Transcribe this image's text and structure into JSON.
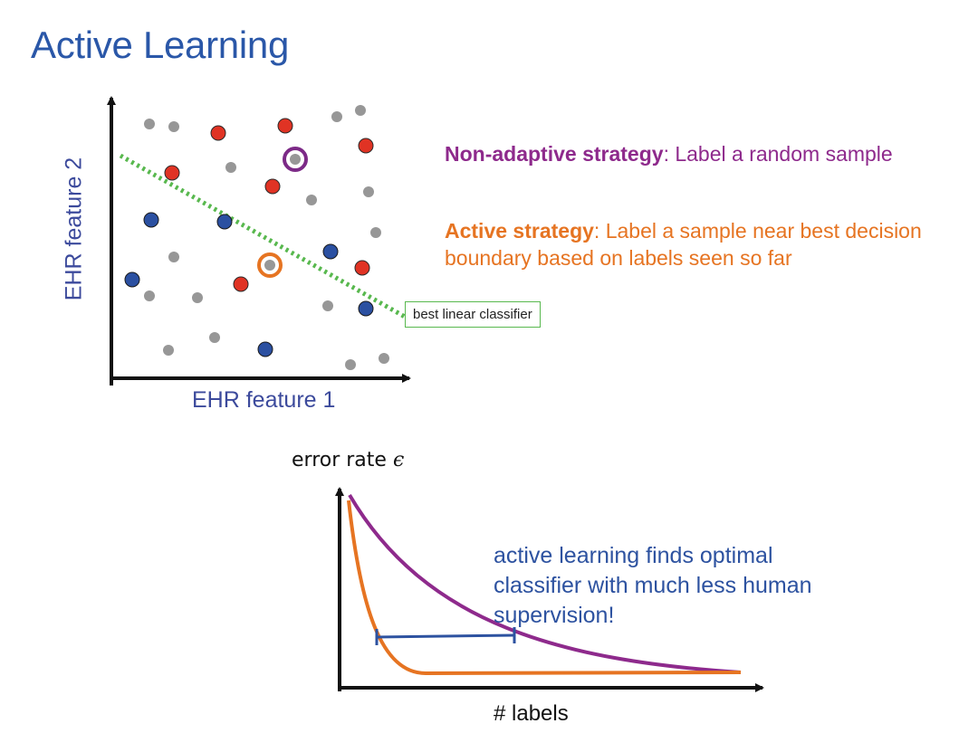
{
  "title": "Active Learning",
  "scatter": {
    "x_axis_label": "EHR feature 1",
    "y_axis_label": "EHR feature 2",
    "classifier_label": "best linear classifier",
    "colors": {
      "unlabeled": "#979797",
      "positive": "#e03324",
      "negative": "#2b50a1",
      "boundary": "#58b84e",
      "random_pick": "#7c2a87",
      "active_pick": "#e67422"
    },
    "legend_circles": [
      "random-sample-circle",
      "active-sample-circle"
    ]
  },
  "strategies": {
    "non_adaptive_name": "Non-adaptive strategy",
    "non_adaptive_desc": ": Label a random sample",
    "active_name": "Active strategy",
    "active_desc": ": Label a sample near best decision boundary based on labels seen so far"
  },
  "curve_chart": {
    "y_label": "error rate ",
    "y_symbol": "ϵ",
    "x_label": "# labels",
    "callout": "active learning finds optimal classifier with much less human supervision!",
    "series_colors": {
      "non_adaptive": "#8e2a8c",
      "active": "#e67422",
      "gap_marker": "#2d52a0"
    }
  }
}
